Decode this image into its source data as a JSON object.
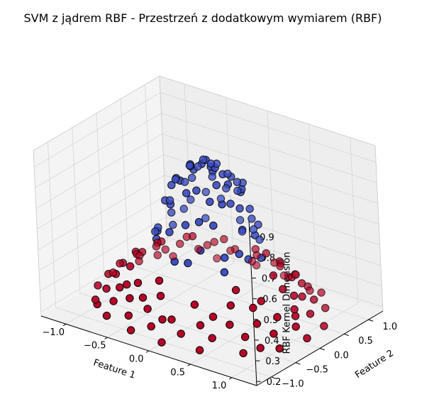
{
  "chart_data": {
    "type": "scatter",
    "projection": "3d",
    "title": "SVM z jądrem RBF - Przestrzeń z dodatkowym wymiarem (RBF)",
    "xlabel": "Feature 1",
    "ylabel": "Feature 2",
    "zlabel": "RBF Kernel Dimension",
    "xlim": [
      -1.3,
      1.3
    ],
    "ylim": [
      -1.3,
      1.3
    ],
    "zlim": [
      0.18,
      0.98
    ],
    "x_ticks": [
      "−1.0",
      "−0.5",
      "0.0",
      "0.5",
      "1.0"
    ],
    "x_tick_values": [
      -1.0,
      -0.5,
      0.0,
      0.5,
      1.0
    ],
    "y_ticks": [
      "−1.0",
      "−0.5",
      "0.0",
      "0.5",
      "1.0"
    ],
    "y_tick_values": [
      -1.0,
      -0.5,
      0.0,
      0.5,
      1.0
    ],
    "z_ticks": [
      "0.2",
      "0.3",
      "0.4",
      "0.5",
      "0.6",
      "0.7",
      "0.8",
      "0.9"
    ],
    "z_tick_values": [
      0.2,
      0.3,
      0.4,
      0.5,
      0.6,
      0.7,
      0.8,
      0.9
    ],
    "grid": true,
    "colors": {
      "class_inner": "#3b4cc0",
      "class_outer": "#b40426",
      "edge": "#000000"
    },
    "series": [
      {
        "class": "inner",
        "color": "#3b4cc0",
        "points": [
          [
            0.0,
            0.02,
            0.92
          ],
          [
            0.1,
            -0.05,
            0.91
          ],
          [
            -0.08,
            0.1,
            0.9
          ],
          [
            0.05,
            0.15,
            0.89
          ],
          [
            -0.15,
            -0.05,
            0.88
          ],
          [
            0.18,
            0.05,
            0.87
          ],
          [
            0.22,
            -0.15,
            0.85
          ],
          [
            -0.2,
            0.18,
            0.84
          ],
          [
            0.05,
            -0.28,
            0.82
          ],
          [
            -0.3,
            -0.1,
            0.81
          ],
          [
            0.3,
            0.22,
            0.79
          ],
          [
            -0.12,
            0.33,
            0.78
          ],
          [
            0.35,
            -0.1,
            0.77
          ],
          [
            -0.35,
            0.15,
            0.75
          ],
          [
            0.15,
            0.38,
            0.74
          ],
          [
            -0.25,
            -0.32,
            0.72
          ],
          [
            0.4,
            0.2,
            0.71
          ],
          [
            0.28,
            -0.35,
            0.69
          ],
          [
            -0.42,
            -0.05,
            0.68
          ],
          [
            0.0,
            -0.45,
            0.67
          ],
          [
            -0.1,
            0.45,
            0.66
          ],
          [
            0.45,
            -0.05,
            0.65
          ],
          [
            -0.38,
            0.3,
            0.64
          ],
          [
            0.32,
            0.36,
            0.63
          ],
          [
            -0.2,
            -0.45,
            0.61
          ],
          [
            0.48,
            0.15,
            0.6
          ],
          [
            -0.5,
            0.1,
            0.59
          ],
          [
            0.2,
            -0.5,
            0.58
          ],
          [
            0.08,
            0.52,
            0.57
          ],
          [
            -0.45,
            -0.28,
            0.56
          ],
          [
            0.4,
            -0.35,
            0.55
          ],
          [
            -0.3,
            0.45,
            0.54
          ],
          [
            0.55,
            -0.12,
            0.53
          ],
          [
            0.35,
            0.45,
            0.52
          ],
          [
            -0.55,
            0.2,
            0.51
          ],
          [
            -0.08,
            -0.57,
            0.5
          ],
          [
            0.12,
            0.0,
            0.9
          ],
          [
            -0.05,
            -0.15,
            0.89
          ],
          [
            0.25,
            0.1,
            0.86
          ],
          [
            -0.22,
            0.05,
            0.86
          ],
          [
            0.1,
            0.28,
            0.83
          ],
          [
            -0.05,
            -0.32,
            0.8
          ],
          [
            0.32,
            -0.22,
            0.78
          ],
          [
            -0.32,
            0.25,
            0.76
          ],
          [
            0.2,
            0.3,
            0.8
          ],
          [
            -0.18,
            -0.22,
            0.83
          ],
          [
            0.4,
            0.0,
            0.74
          ],
          [
            0.0,
            0.4,
            0.73
          ],
          [
            -0.4,
            -0.18,
            0.7
          ],
          [
            0.15,
            -0.42,
            0.7
          ],
          [
            -0.25,
            0.4,
            0.68
          ],
          [
            0.42,
            0.32,
            0.62
          ],
          [
            -0.48,
            0.32,
            0.58
          ],
          [
            0.52,
            -0.25,
            0.57
          ],
          [
            0.25,
            0.5,
            0.55
          ],
          [
            -0.38,
            -0.42,
            0.55
          ],
          [
            0.6,
            0.05,
            0.52
          ],
          [
            -0.6,
            -0.08,
            0.51
          ],
          [
            0.05,
            0.6,
            0.5
          ],
          [
            0.45,
            -0.45,
            0.5
          ],
          [
            -0.52,
            -0.15,
            0.55
          ],
          [
            0.1,
            -0.6,
            0.52
          ],
          [
            0.02,
            -0.1,
            0.92
          ],
          [
            -0.12,
            -0.1,
            0.9
          ],
          [
            0.15,
            -0.1,
            0.9
          ],
          [
            0.28,
            0.28,
            0.81
          ],
          [
            -0.3,
            -0.2,
            0.79
          ],
          [
            0.36,
            0.1,
            0.8
          ],
          [
            -0.4,
            0.05,
            0.77
          ],
          [
            0.22,
            -0.3,
            0.79
          ],
          [
            -0.08,
            0.25,
            0.86
          ],
          [
            0.3,
            -0.05,
            0.85
          ]
        ]
      },
      {
        "class": "outer",
        "color": "#b40426",
        "points": [
          [
            0.0,
            0.95,
            0.33
          ],
          [
            0.3,
            0.92,
            0.32
          ],
          [
            0.55,
            0.8,
            0.33
          ],
          [
            0.75,
            0.6,
            0.34
          ],
          [
            0.9,
            0.35,
            0.33
          ],
          [
            0.98,
            0.05,
            0.32
          ],
          [
            0.95,
            -0.25,
            0.32
          ],
          [
            0.85,
            -0.5,
            0.31
          ],
          [
            0.65,
            -0.72,
            0.31
          ],
          [
            0.4,
            -0.9,
            0.3
          ],
          [
            0.1,
            -0.98,
            0.3
          ],
          [
            -0.2,
            -0.96,
            0.31
          ],
          [
            -0.48,
            -0.85,
            0.31
          ],
          [
            -0.7,
            -0.68,
            0.31
          ],
          [
            -0.88,
            -0.45,
            0.32
          ],
          [
            -0.97,
            -0.15,
            0.32
          ],
          [
            -0.98,
            0.15,
            0.32
          ],
          [
            -0.9,
            0.42,
            0.33
          ],
          [
            -0.75,
            0.65,
            0.33
          ],
          [
            -0.52,
            0.82,
            0.33
          ],
          [
            -0.25,
            0.93,
            0.33
          ],
          [
            0.15,
            1.05,
            0.3
          ],
          [
            0.45,
            0.98,
            0.29
          ],
          [
            0.7,
            0.8,
            0.29
          ],
          [
            0.92,
            0.55,
            0.29
          ],
          [
            1.05,
            0.25,
            0.28
          ],
          [
            1.08,
            -0.1,
            0.27
          ],
          [
            1.0,
            -0.42,
            0.27
          ],
          [
            0.82,
            -0.7,
            0.27
          ],
          [
            0.55,
            -0.92,
            0.26
          ],
          [
            0.25,
            -1.05,
            0.26
          ],
          [
            -0.08,
            -1.1,
            0.26
          ],
          [
            -0.4,
            -1.02,
            0.26
          ],
          [
            -0.68,
            -0.85,
            0.27
          ],
          [
            -0.9,
            -0.62,
            0.27
          ],
          [
            -1.05,
            -0.32,
            0.28
          ],
          [
            -1.1,
            0.0,
            0.28
          ],
          [
            -1.05,
            0.32,
            0.28
          ],
          [
            -0.9,
            0.6,
            0.29
          ],
          [
            -0.65,
            0.85,
            0.29
          ],
          [
            -0.35,
            1.0,
            0.3
          ],
          [
            0.05,
            0.85,
            0.38
          ],
          [
            0.4,
            0.75,
            0.38
          ],
          [
            0.7,
            0.42,
            0.39
          ],
          [
            0.82,
            0.1,
            0.39
          ],
          [
            0.78,
            -0.28,
            0.38
          ],
          [
            0.6,
            -0.6,
            0.38
          ],
          [
            0.28,
            -0.8,
            0.37
          ],
          [
            -0.1,
            -0.85,
            0.37
          ],
          [
            -0.45,
            -0.72,
            0.37
          ],
          [
            -0.7,
            -0.45,
            0.38
          ],
          [
            -0.85,
            -0.08,
            0.38
          ],
          [
            -0.8,
            0.28,
            0.38
          ],
          [
            -0.62,
            0.58,
            0.39
          ],
          [
            -0.3,
            0.8,
            0.39
          ],
          [
            0.2,
            1.15,
            0.23
          ],
          [
            0.6,
            1.0,
            0.23
          ],
          [
            0.95,
            0.72,
            0.23
          ],
          [
            1.15,
            0.35,
            0.22
          ],
          [
            1.18,
            -0.05,
            0.22
          ],
          [
            1.1,
            -0.48,
            0.22
          ],
          [
            0.88,
            -0.85,
            0.22
          ],
          [
            0.5,
            -1.1,
            0.22
          ],
          [
            0.1,
            -1.2,
            0.22
          ],
          [
            -0.3,
            -1.15,
            0.22
          ],
          [
            -0.68,
            -1.0,
            0.22
          ],
          [
            -0.98,
            -0.72,
            0.22
          ],
          [
            -1.15,
            -0.38,
            0.22
          ],
          [
            -1.2,
            0.02,
            0.22
          ],
          [
            -1.12,
            0.42,
            0.23
          ],
          [
            -0.92,
            0.78,
            0.23
          ],
          [
            -0.55,
            1.05,
            0.23
          ],
          [
            -0.15,
            1.18,
            0.23
          ],
          [
            0.35,
            0.85,
            0.35
          ],
          [
            0.88,
            0.22,
            0.35
          ],
          [
            0.5,
            -0.8,
            0.34
          ],
          [
            -0.3,
            -0.88,
            0.34
          ],
          [
            -0.88,
            0.1,
            0.35
          ],
          [
            -0.45,
            0.85,
            0.35
          ],
          [
            0.75,
            -0.4,
            0.36
          ],
          [
            -0.6,
            -0.7,
            0.34
          ],
          [
            0.62,
            0.62,
            0.35
          ],
          [
            1.0,
            -0.7,
            0.24
          ],
          [
            -1.0,
            0.6,
            0.25
          ],
          [
            0.8,
            0.9,
            0.26
          ],
          [
            -0.85,
            -0.9,
            0.24
          ],
          [
            0.0,
            -1.0,
            0.29
          ],
          [
            1.02,
            0.0,
            0.3
          ],
          [
            -0.15,
            1.1,
            0.26
          ],
          [
            0.65,
            0.2,
            0.42
          ],
          [
            -0.2,
            -0.7,
            0.41
          ],
          [
            -0.7,
            0.2,
            0.41
          ],
          [
            0.3,
            0.65,
            0.42
          ],
          [
            0.55,
            -0.4,
            0.42
          ],
          [
            -0.5,
            0.5,
            0.42
          ]
        ]
      }
    ]
  }
}
